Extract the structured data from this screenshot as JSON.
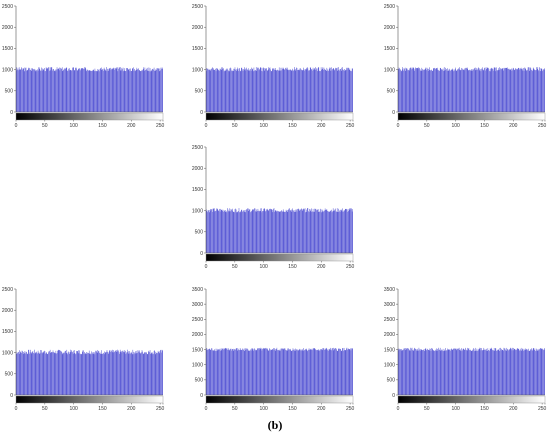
{
  "caption": "(b)",
  "colors": {
    "bar": "#5656d4",
    "bar_edge": "#3b3bb0",
    "axis": "#555555",
    "text": "#333333"
  },
  "chart_data": [
    {
      "type": "bar",
      "title": "",
      "xlabel": "",
      "ylabel": "",
      "xlim": [
        0,
        255
      ],
      "ylim": [
        0,
        2500
      ],
      "yticks": [
        0,
        500,
        1000,
        1500,
        2000,
        2500
      ],
      "xticks": [
        0,
        50,
        100,
        150,
        200,
        250
      ],
      "colorbar": "grayscale 0-255",
      "bins": 256,
      "mean": 1000,
      "min": 960,
      "max": 1060
    },
    {
      "type": "bar",
      "title": "",
      "xlabel": "",
      "ylabel": "",
      "xlim": [
        0,
        255
      ],
      "ylim": [
        0,
        2500
      ],
      "yticks": [
        0,
        500,
        1000,
        1500,
        2000,
        2500
      ],
      "xticks": [
        0,
        50,
        100,
        150,
        200,
        250
      ],
      "colorbar": "grayscale 0-255",
      "bins": 256,
      "mean": 1000,
      "min": 960,
      "max": 1060
    },
    {
      "type": "bar",
      "title": "",
      "xlabel": "",
      "ylabel": "",
      "xlim": [
        0,
        255
      ],
      "ylim": [
        0,
        2500
      ],
      "yticks": [
        0,
        500,
        1000,
        1500,
        2000,
        2500
      ],
      "xticks": [
        0,
        50,
        100,
        150,
        200,
        250
      ],
      "colorbar": "grayscale 0-255",
      "bins": 256,
      "mean": 1000,
      "min": 960,
      "max": 1060
    },
    {
      "type": "bar",
      "title": "",
      "xlabel": "",
      "ylabel": "",
      "xlim": [
        0,
        255
      ],
      "ylim": [
        0,
        2500
      ],
      "yticks": [
        0,
        500,
        1000,
        1500,
        2000,
        2500
      ],
      "xticks": [
        0,
        50,
        100,
        150,
        200,
        250
      ],
      "colorbar": "grayscale 0-255",
      "bins": 256,
      "mean": 1000,
      "min": 960,
      "max": 1060
    },
    {
      "type": "bar",
      "title": "",
      "xlabel": "",
      "ylabel": "",
      "xlim": [
        0,
        255
      ],
      "ylim": [
        0,
        2500
      ],
      "yticks": [
        0,
        500,
        1000,
        1500,
        2000,
        2500
      ],
      "xticks": [
        0,
        50,
        100,
        150,
        200,
        250
      ],
      "colorbar": "grayscale 0-255",
      "bins": 256,
      "mean": 1000,
      "min": 960,
      "max": 1070
    },
    {
      "type": "bar",
      "title": "",
      "xlabel": "",
      "ylabel": "",
      "xlim": [
        0,
        255
      ],
      "ylim": [
        0,
        3500
      ],
      "yticks": [
        0,
        500,
        1000,
        1500,
        2000,
        2500,
        3000,
        3500
      ],
      "xticks": [
        0,
        50,
        100,
        150,
        200,
        250
      ],
      "colorbar": "grayscale 0-255",
      "bins": 256,
      "mean": 1500,
      "min": 1450,
      "max": 1560
    },
    {
      "type": "bar",
      "title": "",
      "xlabel": "",
      "ylabel": "",
      "xlim": [
        0,
        255
      ],
      "ylim": [
        0,
        3500
      ],
      "yticks": [
        0,
        500,
        1000,
        1500,
        2000,
        2500,
        3000,
        3500
      ],
      "xticks": [
        0,
        50,
        100,
        150,
        200,
        250
      ],
      "colorbar": "grayscale 0-255",
      "bins": 256,
      "mean": 1500,
      "min": 1450,
      "max": 1560
    }
  ]
}
